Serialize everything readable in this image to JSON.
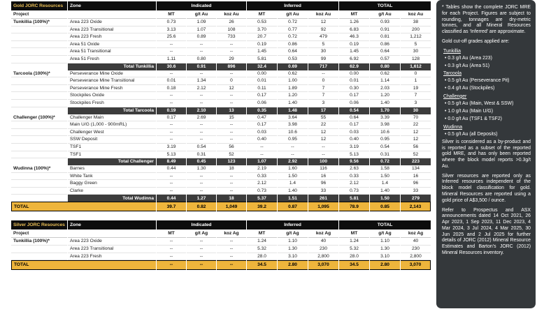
{
  "colors": {
    "accent_yellow": "#EEB53C",
    "header_bar_black": "#0d0d0d",
    "subtotal_gray": "#3c3c3c",
    "panel_bg": "#34383b",
    "title_gold": "#E8BD55"
  },
  "gold_table": {
    "title": "Gold JORC Resources",
    "zone_label": "Zone",
    "project_label": "Project",
    "group_headers": [
      "Indicated",
      "Inferred",
      "TOTAL"
    ],
    "sub_headers": [
      "MT",
      "g/t Au",
      "koz Au"
    ],
    "rows": [
      {
        "project": "Tunkillia (100%)*",
        "zone": "Area 223 Oxide",
        "values": [
          "0.73",
          "1.09",
          "26",
          "0.53",
          "0.72",
          "12",
          "1.26",
          "0.93",
          "38"
        ]
      },
      {
        "project": "",
        "zone": "Area 223 Transitional",
        "values": [
          "3.13",
          "1.07",
          "108",
          "3.70",
          "0.77",
          "92",
          "6.83",
          "0.91",
          "200"
        ]
      },
      {
        "project": "",
        "zone": "Area 223 Fresh",
        "values": [
          "25.6",
          "0.89",
          "733",
          "20.7",
          "0.72",
          "479",
          "46.3",
          "0.81",
          "1,212"
        ]
      },
      {
        "project": "",
        "zone": "Area 51 Oxide",
        "values": [
          "--",
          "--",
          "--",
          "0.19",
          "0.86",
          "5",
          "0.19",
          "0.86",
          "5"
        ]
      },
      {
        "project": "",
        "zone": "Area 51 Transitional",
        "values": [
          "--",
          "--",
          "--",
          "1.45",
          "0.64",
          "30",
          "1.45",
          "0.64",
          "30"
        ]
      },
      {
        "project": "",
        "zone": "Area 51 Fresh",
        "values": [
          "1.11",
          "0.80",
          "29",
          "5.81",
          "0.53",
          "99",
          "6.92",
          "0.57",
          "128"
        ]
      },
      {
        "subtotal": "Total Tunkillia",
        "values": [
          "30.6",
          "0.91",
          "896",
          "32.4",
          "0.69",
          "717",
          "62.9",
          "0.80",
          "1,612"
        ]
      },
      {
        "project": "Tarcoola (100%)*",
        "zone": "Perseverance Mine Oxide",
        "values": [
          "--",
          "--",
          "--",
          "0.00",
          "0.62",
          "--",
          "0.00",
          "0.62",
          "0"
        ]
      },
      {
        "project": "",
        "zone": "Perseverance Mine Transitional",
        "values": [
          "0.01",
          "1.34",
          "0",
          "0.01",
          "1.00",
          "0",
          "0.01",
          "1.14",
          "1"
        ]
      },
      {
        "project": "",
        "zone": "Perseverance Mine Fresh",
        "values": [
          "0.18",
          "2.12",
          "12",
          "0.11",
          "1.89",
          "7",
          "0.30",
          "2.03",
          "19"
        ]
      },
      {
        "project": "",
        "zone": "Stockpiles Oxide",
        "values": [
          "--",
          "--",
          "--",
          "0.17",
          "1.20",
          "7",
          "0.17",
          "1.20",
          "7"
        ]
      },
      {
        "project": "",
        "zone": "Stockpiles Fresh",
        "values": [
          "--",
          "--",
          "--",
          "0.06",
          "1.40",
          "3",
          "0.06",
          "1.40",
          "3"
        ]
      },
      {
        "subtotal": "Total Tarcoola",
        "values": [
          "0.19",
          "2.10",
          "13",
          "0.35",
          "1.48",
          "17",
          "0.54",
          "1.70",
          "30"
        ]
      },
      {
        "project": "Challenger (100%)*",
        "zone": "Challenger Main",
        "values": [
          "0.17",
          "2.69",
          "15",
          "0.47",
          "3.64",
          "55",
          "0.64",
          "3.39",
          "70"
        ]
      },
      {
        "project": "",
        "zone": "Main U/G (1,000 - 900mRL)",
        "values": [
          "--",
          "--",
          "--",
          "0.17",
          "3.98",
          "22",
          "0.17",
          "3.98",
          "22"
        ]
      },
      {
        "project": "",
        "zone": "Challenger West",
        "values": [
          "--",
          "--",
          "--",
          "0.03",
          "10.6",
          "12",
          "0.03",
          "10.6",
          "12"
        ]
      },
      {
        "project": "",
        "zone": "SSW Deposit",
        "values": [
          "--",
          "--",
          "--",
          "0.40",
          "0.95",
          "12",
          "0.40",
          "0.95",
          "12"
        ]
      },
      {
        "project": "",
        "zone": "TSF1",
        "values": [
          "3.19",
          "0.54",
          "56",
          "--",
          "--",
          "--",
          "3.19",
          "0.54",
          "56"
        ]
      },
      {
        "project": "",
        "zone": "TSF1",
        "values": [
          "5.13",
          "0.31",
          "52",
          "--",
          "--",
          "--",
          "5.13",
          "0.31",
          "52"
        ]
      },
      {
        "subtotal": "Total Challenger",
        "values": [
          "8.49",
          "0.45",
          "123",
          "1.07",
          "2.92",
          "100",
          "9.56",
          "0.72",
          "223"
        ]
      },
      {
        "project": "Wudinna (100%)*",
        "zone": "Barnes",
        "values": [
          "0.44",
          "1.30",
          "18",
          "2.19",
          "1.60",
          "116",
          "2.63",
          "1.58",
          "134"
        ]
      },
      {
        "project": "",
        "zone": "White Tank",
        "values": [
          "--",
          "--",
          "--",
          "0.33",
          "1.50",
          "16",
          "0.33",
          "1.50",
          "16"
        ]
      },
      {
        "project": "",
        "zone": "Baggy Green",
        "values": [
          "--",
          "--",
          "--",
          "2.12",
          "1.4",
          "96",
          "2.12",
          "1.4",
          "96"
        ]
      },
      {
        "project": "",
        "zone": "Clarke",
        "values": [
          "--",
          "--",
          "--",
          "0.73",
          "1.40",
          "33",
          "0.73",
          "1.40",
          "33"
        ]
      },
      {
        "subtotal": "Total Wudinna",
        "values": [
          "0.44",
          "1.27",
          "18",
          "5.37",
          "1.51",
          "261",
          "5.81",
          "1.50",
          "279"
        ]
      }
    ],
    "grand_total": {
      "label": "TOTAL",
      "values": [
        "39.7",
        "0.82",
        "1,049",
        "39.2",
        "0.87",
        "1,095",
        "78.9",
        "0.85",
        "2,143"
      ]
    }
  },
  "silver_table": {
    "title": "Silver JORC Resources",
    "zone_label": "Zone",
    "project_label": "Project",
    "group_headers": [
      "Indicated",
      "Inferred",
      "TOTAL"
    ],
    "sub_headers": [
      "MT",
      "g/t Ag",
      "koz Ag"
    ],
    "rows": [
      {
        "project": "Tunkillia (100%)*",
        "zone": "Area 223 Oxide",
        "values": [
          "--",
          "--",
          "--",
          "1.24",
          "1.10",
          "40",
          "1.24",
          "1.10",
          "40"
        ]
      },
      {
        "project": "",
        "zone": "Area 223 Transitional",
        "values": [
          "--",
          "--",
          "--",
          "5.32",
          "1.30",
          "230",
          "5.32",
          "1.30",
          "230"
        ]
      },
      {
        "project": "",
        "zone": "Area 223 Fresh",
        "values": [
          "--",
          "--",
          "--",
          "28.0",
          "3.10",
          "2,800",
          "28.0",
          "3.10",
          "2,800"
        ]
      }
    ],
    "grand_total": {
      "label": "TOTAL",
      "values": [
        "--",
        "--",
        "--",
        "34.5",
        "2.80",
        "3,070",
        "34.5",
        "2.80",
        "3,070"
      ]
    }
  },
  "notes": {
    "intro": "* Tables show the complete JORC MRE for each Project. Figures are subject to rounding, tonnages are dry-metric tonnes, and all Mineral Resources classified as ‘Inferred’ are approximate.",
    "cutoff_heading": "Gold cut-off grades applied are:",
    "groups": [
      {
        "name": "Tunkillia",
        "items": [
          "0.3 g/t Au (Area 223)",
          "0.3 g/t Au (Area 51)"
        ]
      },
      {
        "name": "Tarcoola",
        "items": [
          "0.5 g/t Au (Perseverance Pit)",
          "0.4 g/t Au (Stockpiles)"
        ]
      },
      {
        "name": "Challenger",
        "items": [
          "0.5 g/t Au (Main, West & SSW)",
          "1.0 g/t Au (Main U/G)",
          "0.0 g/t Au (TSF1 & TSF2)"
        ]
      },
      {
        "name": "Wudinna",
        "items": [
          "0.5 g/t Au (all Deposits)"
        ]
      }
    ],
    "silver_byproduct_note": "Silver is considered as a by-product and is reported as a subset of the reported gold MRE, and has only been reported where the block model reports >0.3g/t Au.",
    "silver_inferred_note": "Silver resources are reported only as Inferred resources independent of the block model classification for gold. Mineral Resources are reported using a gold price of A$3,500 / ounce.",
    "references_note": "Refer to Prospectus and ASX announcements dated 14 Oct 2021, 26 Apr 2023, 1 Sep 2023, 11 Dec 2023, 4 Mar 2024, 3 Jul 2024, 4 Mar 2025, 30 Jun 2025 and 2 Jul 2025 for further details of JORC (2012) Mineral Resource Estimates and Barton’s JORC (2012) Mineral Resources inventory."
  }
}
